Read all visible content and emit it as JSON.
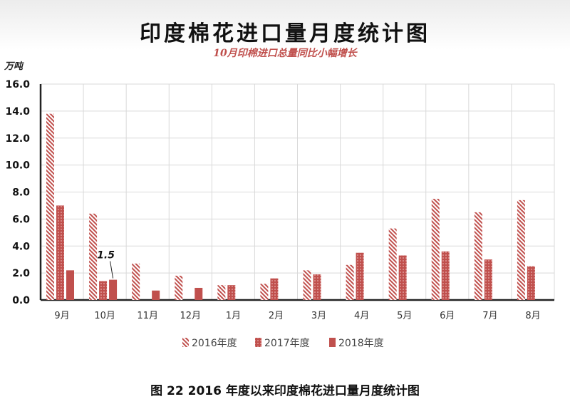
{
  "chart_data": {
    "type": "bar",
    "title": "印度棉花进口量月度统计图",
    "subtitle": "10月印棉进口总量同比小幅增长",
    "ylabel": "万吨",
    "ylim": [
      0,
      16
    ],
    "yticks": [
      "0.0",
      "2.0",
      "4.0",
      "6.0",
      "8.0",
      "10.0",
      "12.0",
      "14.0",
      "16.0"
    ],
    "categories": [
      "9月",
      "10月",
      "11月",
      "12月",
      "1月",
      "2月",
      "3月",
      "4月",
      "5月",
      "6月",
      "7月",
      "8月"
    ],
    "series": [
      {
        "name": "2016年度",
        "values": [
          13.8,
          6.4,
          2.7,
          1.8,
          1.1,
          1.2,
          2.2,
          2.6,
          5.3,
          7.5,
          6.5,
          7.4
        ],
        "color": "#c0504d",
        "pattern": "diagonal-hatch"
      },
      {
        "name": "2017年度",
        "values": [
          7.0,
          1.4,
          null,
          null,
          1.1,
          1.6,
          1.9,
          3.5,
          3.3,
          3.6,
          3.0,
          2.5
        ],
        "color": "#c0504d",
        "pattern": "dotted"
      },
      {
        "name": "2018年度",
        "values": [
          2.2,
          1.5,
          0.7,
          0.9,
          null,
          null,
          null,
          null,
          null,
          null,
          null,
          null
        ],
        "color": "#c0504d",
        "pattern": "solid"
      }
    ],
    "annotations": [
      {
        "text": "1.5",
        "category": "10月",
        "series": "2018年度"
      }
    ],
    "grid": true,
    "legend_position": "bottom"
  },
  "caption": "图 22    2016 年度以来印度棉花进口量月度统计图"
}
